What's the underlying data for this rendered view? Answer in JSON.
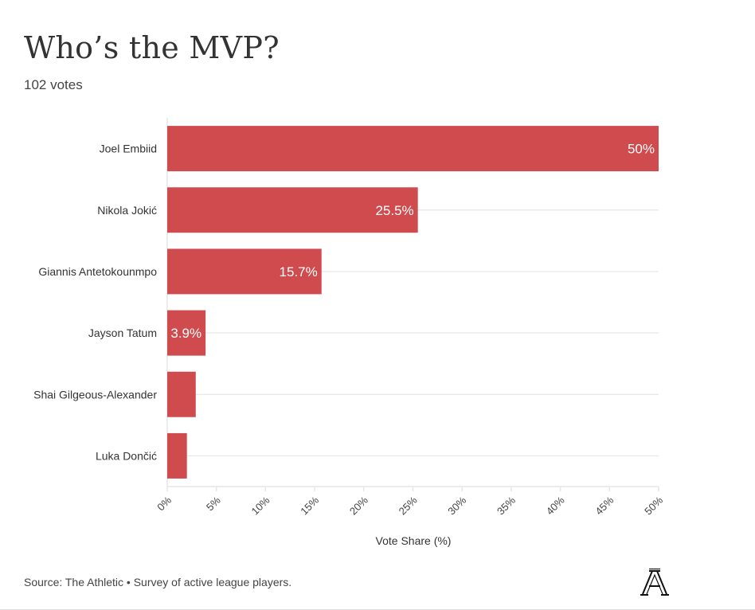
{
  "header": {
    "title": "Who’s the MVP?",
    "subtitle": "102 votes"
  },
  "footer": {
    "source": "Source: The Athletic • Survey of active league players.",
    "logo": "the-athletic-logo-icon"
  },
  "colors": {
    "bar": "#cf4b4d",
    "grid": "#e6e6e6",
    "text": "#333333"
  },
  "chart_data": {
    "type": "bar",
    "orientation": "horizontal",
    "title": "Who’s the MVP?",
    "subtitle": "102 votes",
    "categories": [
      "Joel Embiid",
      "Nikola Jokić",
      "Giannis Antetokounmpo",
      "Jayson Tatum",
      "Shai Gilgeous-Alexander",
      "Luka Dončić"
    ],
    "values": [
      50,
      25.5,
      15.7,
      3.9,
      2.9,
      2.0
    ],
    "data_labels": [
      "50%",
      "25.5%",
      "15.7%",
      "3.9%",
      "",
      ""
    ],
    "xlabel": "Vote Share (%)",
    "ylabel": "",
    "xlim": [
      0,
      50
    ],
    "xticks": [
      0,
      5,
      10,
      15,
      20,
      25,
      30,
      35,
      40,
      45,
      50
    ],
    "xtick_labels": [
      "0%",
      "5%",
      "10%",
      "15%",
      "20%",
      "25%",
      "30%",
      "35%",
      "40%",
      "45%",
      "50%"
    ],
    "grid": true,
    "legend": "none"
  }
}
